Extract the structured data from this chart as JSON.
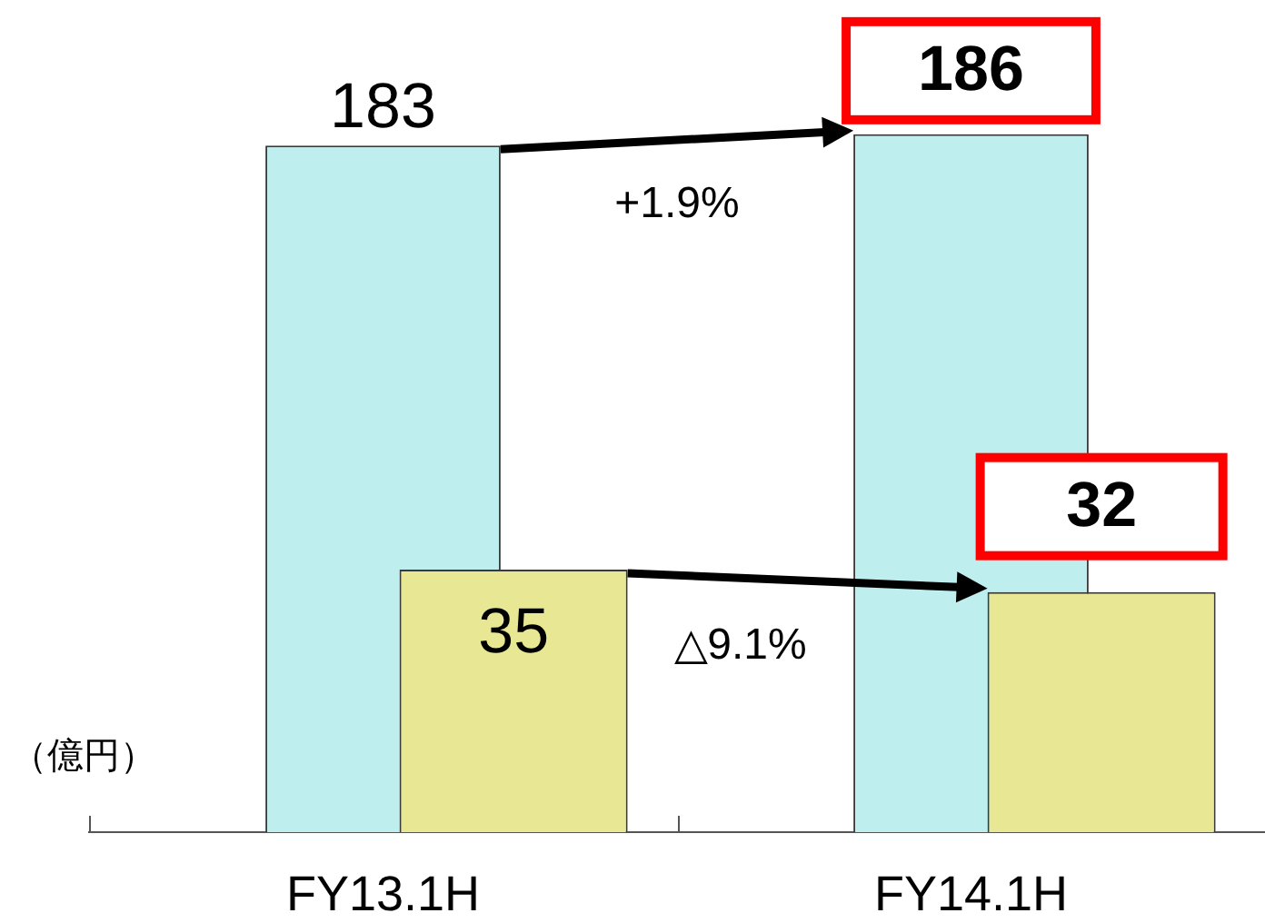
{
  "chart_data": {
    "type": "bar",
    "categories": [
      "FY13.1H",
      "FY14.1H"
    ],
    "series": [
      {
        "color": "#bfeeee",
        "values": [
          183,
          186
        ]
      },
      {
        "color": "#e8e894",
        "values": [
          35,
          32
        ],
        "axis": "y2"
      }
    ],
    "ylabel": "（億円）",
    "annotations": [
      "+1.9%",
      "△9.1%"
    ],
    "data_labels": true,
    "tick_labels": "x"
  }
}
